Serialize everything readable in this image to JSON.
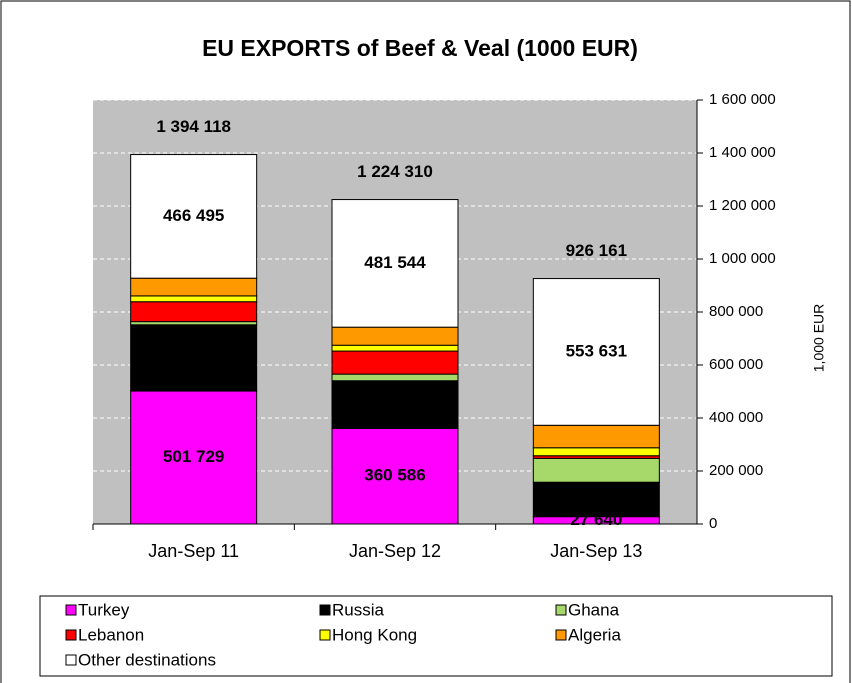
{
  "chart_data": {
    "type": "stacked-bar",
    "title": "EU EXPORTS of Beef & Veal (1000 EUR)",
    "y_label": "1,000 EUR",
    "categories": [
      "Jan-Sep 11",
      "Jan-Sep 12",
      "Jan-Sep 13"
    ],
    "series": [
      {
        "name": "Turkey",
        "color": "#ff00ff",
        "values": [
          501729,
          360586,
          27640
        ],
        "value_labels": [
          "501 729",
          "360 586",
          "27 640"
        ]
      },
      {
        "name": "Russia",
        "color": "#000000",
        "values": [
          250000,
          180000,
          130000
        ]
      },
      {
        "name": "Ghana",
        "color": "#a6d96a",
        "values": [
          12000,
          25000,
          90000
        ]
      },
      {
        "name": "Lebanon",
        "color": "#ff0000",
        "values": [
          75000,
          87000,
          10000
        ]
      },
      {
        "name": "Hong Kong",
        "color": "#ffff00",
        "values": [
          22000,
          22000,
          30000
        ]
      },
      {
        "name": "Algeria",
        "color": "#ff9900",
        "values": [
          66894,
          68180,
          84890
        ]
      },
      {
        "name": "Other destinations",
        "color": "#ffffff",
        "values": [
          466495,
          481544,
          553631
        ],
        "value_labels": [
          "466 495",
          "481 544",
          "553 631"
        ]
      }
    ],
    "totals": [
      1394118,
      1224310,
      926161
    ],
    "total_labels": [
      "1 394 118",
      "1 224 310",
      "926 161"
    ],
    "ylim": [
      0,
      1600000
    ],
    "yticks": [
      0,
      {
        "value": 200000,
        "label": "200 000"
      },
      {
        "value": 400000,
        "label": "400 000"
      },
      {
        "value": 600000,
        "label": "600 000"
      },
      {
        "value": 800000,
        "label": "800 000"
      },
      {
        "value": 1000000,
        "label": "1 000 000"
      },
      {
        "value": 1200000,
        "label": "1 200 000"
      },
      {
        "value": 1400000,
        "label": "1 400 000"
      },
      {
        "value": 1600000,
        "label": "1 600 000"
      }
    ],
    "grid": true,
    "legend": "bottom"
  }
}
